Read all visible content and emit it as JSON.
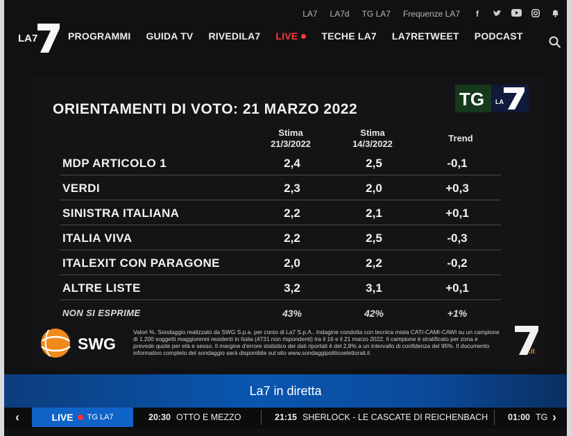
{
  "top_links": [
    "LA7",
    "LA7d",
    "TG LA7",
    "Frequenze LA7"
  ],
  "social_icons": [
    "facebook-icon",
    "twitter-icon",
    "youtube-icon",
    "instagram-icon",
    "notification-bell-icon"
  ],
  "logo_text": "LA7",
  "nav": {
    "items": [
      "PROGRAMMI",
      "GUIDA TV",
      "RIVEDILA7"
    ],
    "live_label": "LIVE",
    "items_after": [
      "TECHE LA7",
      "LA7RETWEET",
      "PODCAST"
    ]
  },
  "poll": {
    "title": "ORIENTAMENTI DI VOTO: 21 MARZO 2022",
    "col1": [
      "Stima",
      "21/3/2022"
    ],
    "col2": [
      "Stima",
      "14/3/2022"
    ],
    "col3": "Trend",
    "rows": [
      {
        "name": "MDP ARTICOLO 1",
        "v1": "2,4",
        "v2": "2,5",
        "trend": "-0,1"
      },
      {
        "name": "VERDI",
        "v1": "2,3",
        "v2": "2,0",
        "trend": "+0,3"
      },
      {
        "name": "SINISTRA ITALIANA",
        "v1": "2,2",
        "v2": "2,1",
        "trend": "+0,1"
      },
      {
        "name": "ITALIA VIVA",
        "v1": "2,2",
        "v2": "2,5",
        "trend": "-0,3"
      },
      {
        "name": "ITALEXIT CON PARAGONE",
        "v1": "2,0",
        "v2": "2,2",
        "trend": "-0,2"
      },
      {
        "name": "ALTRE LISTE",
        "v1": "3,2",
        "v2": "3,1",
        "trend": "+0,1"
      },
      {
        "name": "NON SI ESPRIME",
        "v1": "43%",
        "v2": "42%",
        "trend": "+1%"
      }
    ],
    "note": "Valori %. Sondaggio realizzato da SWG S.p.a. per conto di La7 S.p.A.. Indagine condotta con tecnica mista CATI-CAMI-CAWI su un campione di 1.200 soggetti maggiorenni residenti in Italia (4731 non rispondenti) tra il 16 e il 21 marzo 2022. Il campione è stratificato per zona e prevede quote per età e sesso. Il margine d'errore statistico dei dati riportati è del 2,8% a un intervallo di confidenza del 95%. Il documento informativo completo del sondaggio sarà disponibile sul sito www.sondaggipoliticoelettorali.it",
    "swg_label": "SWG",
    "tg_label": "TG",
    "tg_sub": "LA",
    "la7it_suffix": ".it"
  },
  "live_strip": {
    "title": "La7 in diretta"
  },
  "schedule": {
    "live_label": "LIVE",
    "live_program": "TG LA7",
    "programs": [
      {
        "time": "20:30",
        "title": "OTTO E MEZZO"
      },
      {
        "time": "21:15",
        "title": "SHERLOCK - LE CASCATE DI REICHENBACH"
      },
      {
        "time": "01:00",
        "title": "TG"
      }
    ]
  }
}
